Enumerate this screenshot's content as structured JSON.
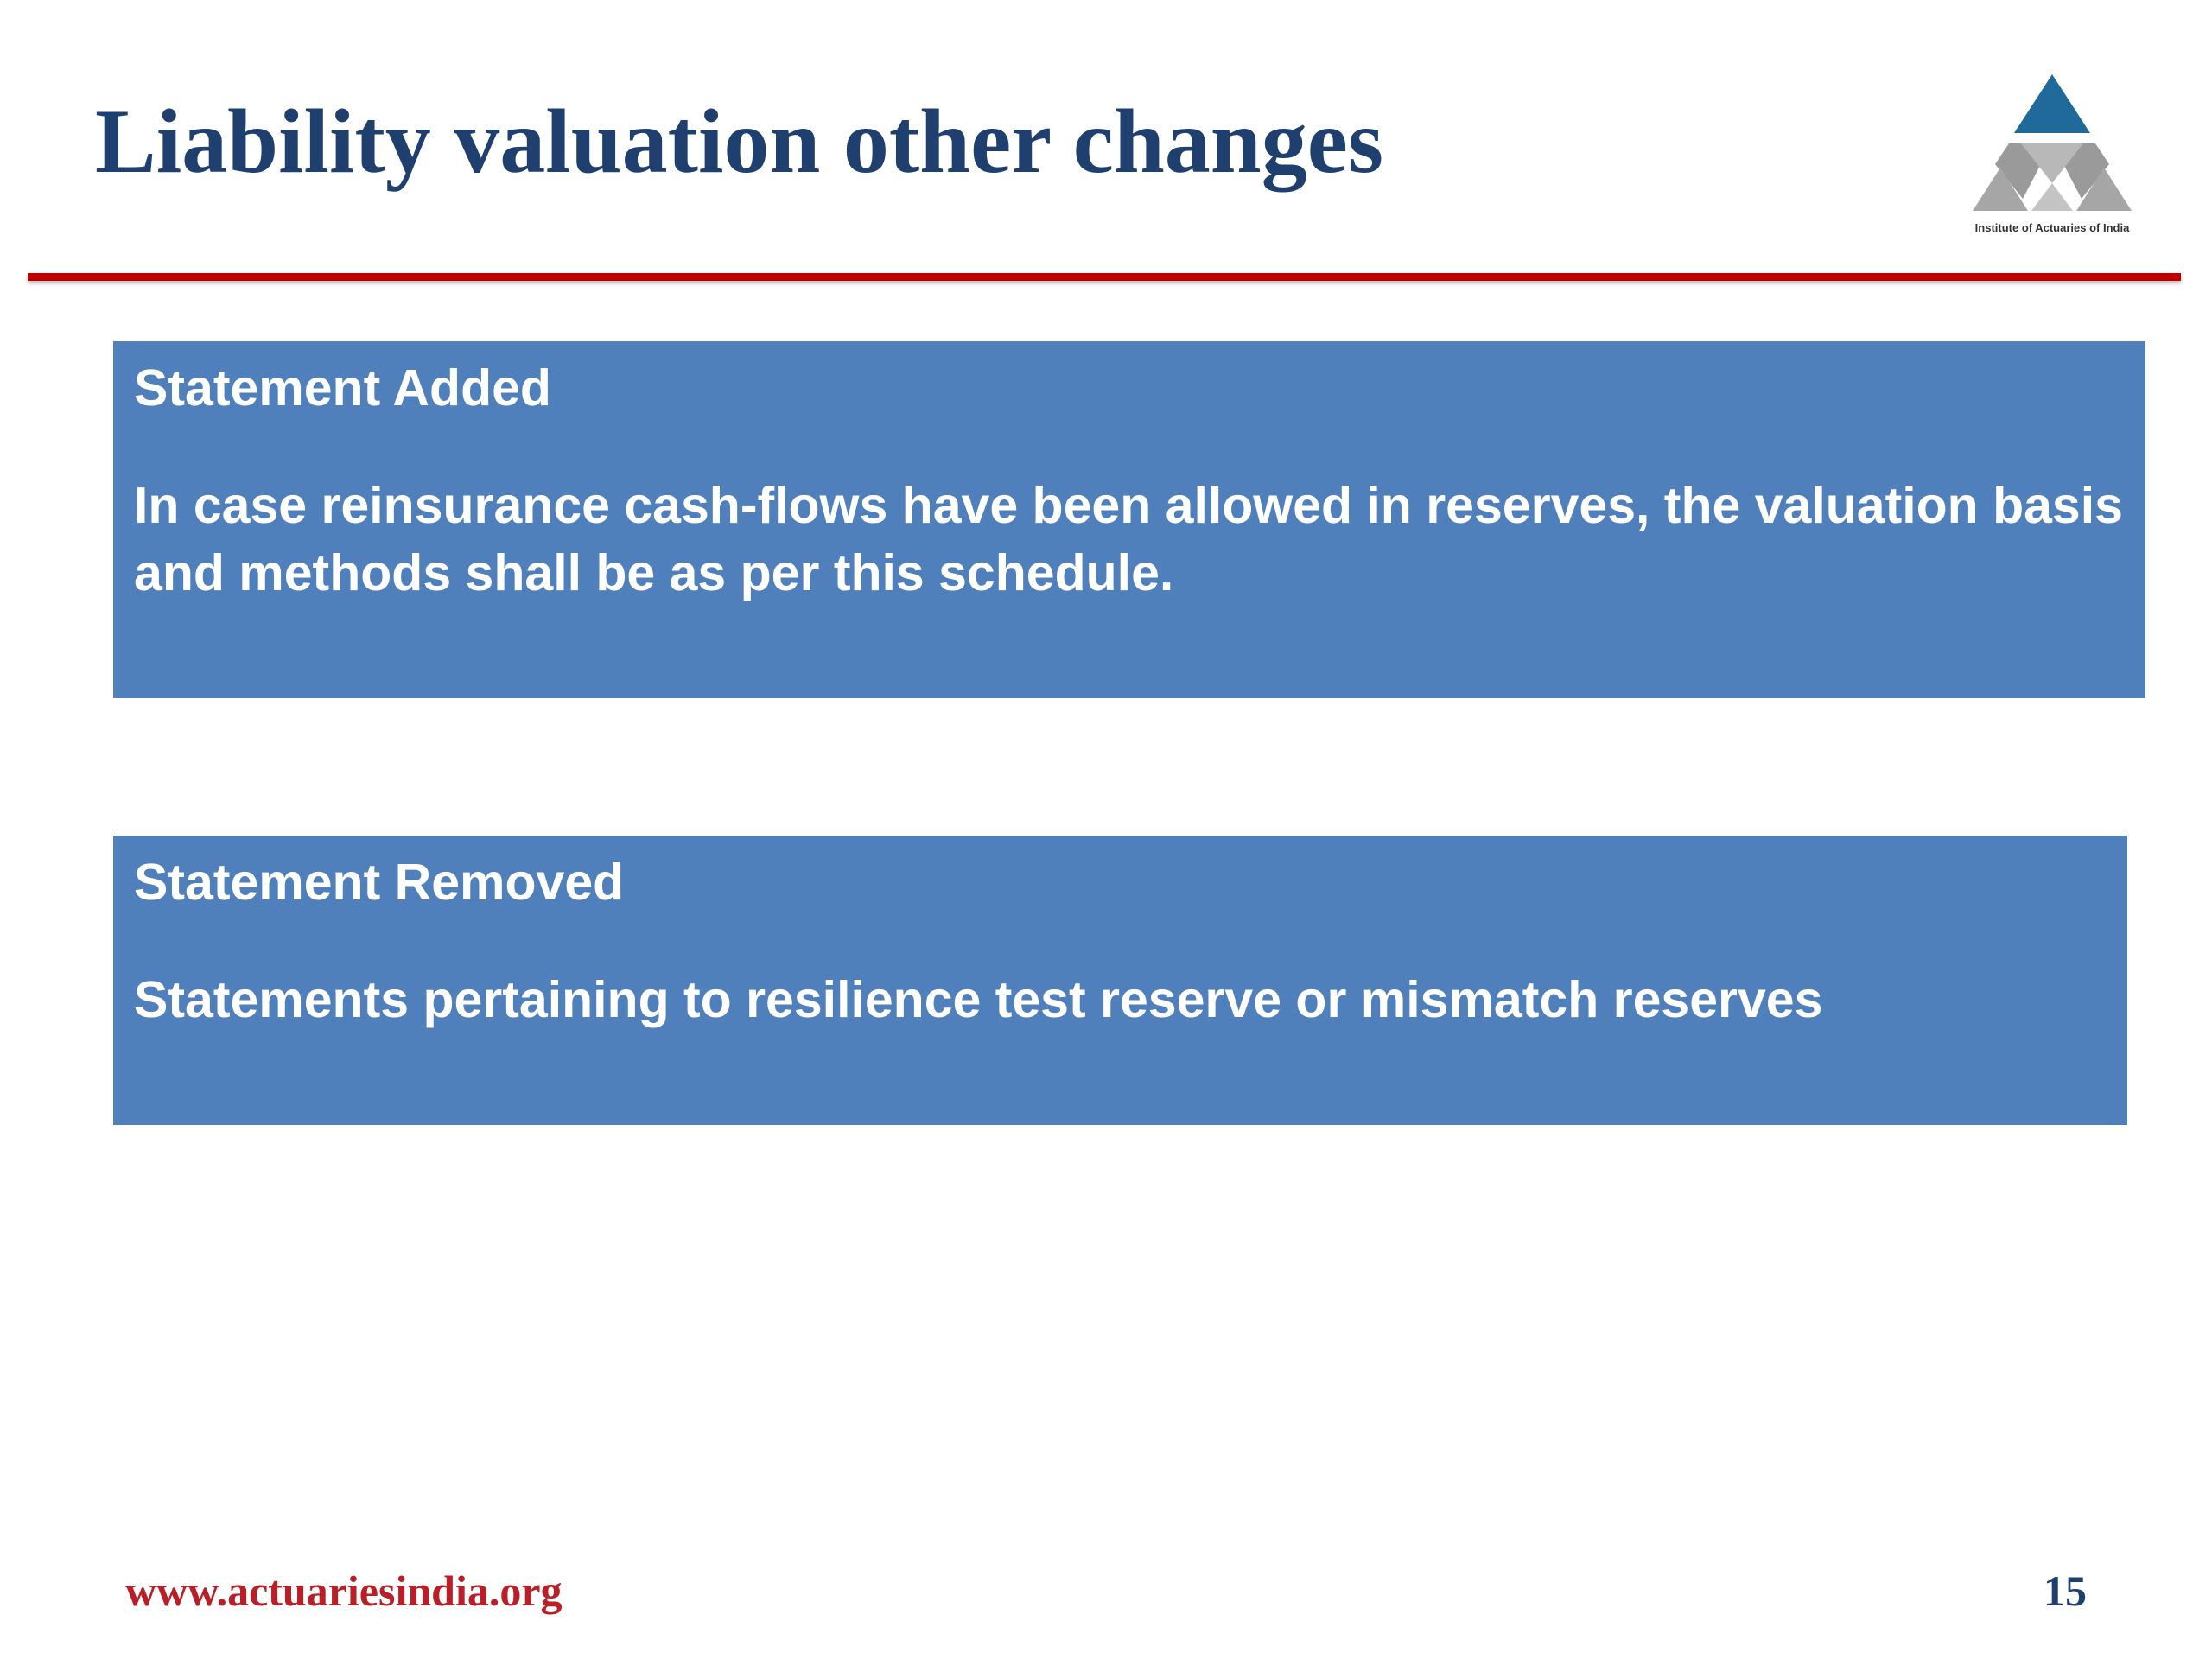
{
  "slide": {
    "title": "Liability valuation other changes",
    "page_number": "15",
    "footer_url": "www.actuariesindia.org"
  },
  "logo": {
    "icon": "institute-of-actuaries-of-india-logo",
    "caption": "Institute of Actuaries of India"
  },
  "panels": [
    {
      "heading": "Statement Added",
      "text": "In case reinsurance cash-flows have been allowed in reserves, the valuation basis and methods shall be as per this schedule."
    },
    {
      "heading": "Statement Removed",
      "text": "Statements pertaining to resilience test reserve or mismatch reserves"
    }
  ],
  "colors": {
    "title": "#1f3f6e",
    "rule": "#c00000",
    "panel": "#5080bc",
    "footer": "#b81f26"
  }
}
